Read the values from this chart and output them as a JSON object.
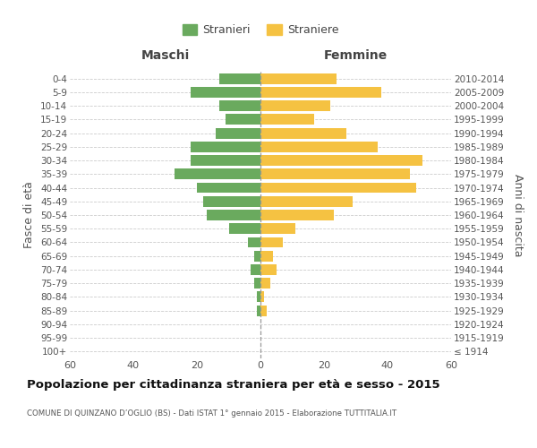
{
  "age_groups": [
    "100+",
    "95-99",
    "90-94",
    "85-89",
    "80-84",
    "75-79",
    "70-74",
    "65-69",
    "60-64",
    "55-59",
    "50-54",
    "45-49",
    "40-44",
    "35-39",
    "30-34",
    "25-29",
    "20-24",
    "15-19",
    "10-14",
    "5-9",
    "0-4"
  ],
  "birth_years": [
    "≤ 1914",
    "1915-1919",
    "1920-1924",
    "1925-1929",
    "1930-1934",
    "1935-1939",
    "1940-1944",
    "1945-1949",
    "1950-1954",
    "1955-1959",
    "1960-1964",
    "1965-1969",
    "1970-1974",
    "1975-1979",
    "1980-1984",
    "1985-1989",
    "1990-1994",
    "1995-1999",
    "2000-2004",
    "2005-2009",
    "2010-2014"
  ],
  "maschi": [
    0,
    0,
    0,
    1,
    1,
    2,
    3,
    2,
    4,
    10,
    17,
    18,
    20,
    27,
    22,
    22,
    14,
    11,
    13,
    22,
    13
  ],
  "femmine": [
    0,
    0,
    0,
    2,
    1,
    3,
    5,
    4,
    7,
    11,
    23,
    29,
    49,
    47,
    51,
    37,
    27,
    17,
    22,
    38,
    24
  ],
  "male_color": "#6aaa5e",
  "female_color": "#f5c242",
  "title": "Popolazione per cittadinanza straniera per età e sesso - 2015",
  "subtitle": "COMUNE DI QUINZANO D’OGLIO (BS) - Dati ISTAT 1° gennaio 2015 - Elaborazione TUTTITALIA.IT",
  "xlabel_left": "Maschi",
  "xlabel_right": "Femmine",
  "ylabel_left": "Fasce di età",
  "ylabel_right": "Anni di nascita",
  "legend_male": "Stranieri",
  "legend_female": "Straniere",
  "xlim": 60,
  "background_color": "#ffffff",
  "grid_color": "#cccccc"
}
